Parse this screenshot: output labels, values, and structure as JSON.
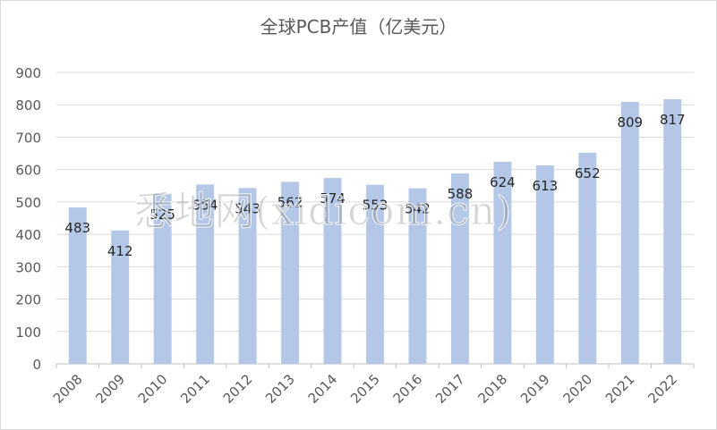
{
  "chart_data": {
    "type": "bar",
    "title": "全球PCB产值（亿美元）",
    "categories": [
      "2008",
      "2009",
      "2010",
      "2011",
      "2012",
      "2013",
      "2014",
      "2015",
      "2016",
      "2017",
      "2018",
      "2019",
      "2020",
      "2021",
      "2022"
    ],
    "values": [
      483,
      412,
      525,
      554,
      543,
      562,
      574,
      553,
      542,
      588,
      624,
      613,
      652,
      809,
      817
    ],
    "ylim": [
      0,
      900
    ],
    "yticks": [
      0,
      100,
      200,
      300,
      400,
      500,
      600,
      700,
      800,
      900
    ],
    "grid": true,
    "bar_color": "#b4c7e7",
    "gridline_color": "#d9d9d9",
    "label_color": "#262626",
    "tick_label_color": "#595959"
  },
  "watermark": "悉地网(xidicom.cn)"
}
